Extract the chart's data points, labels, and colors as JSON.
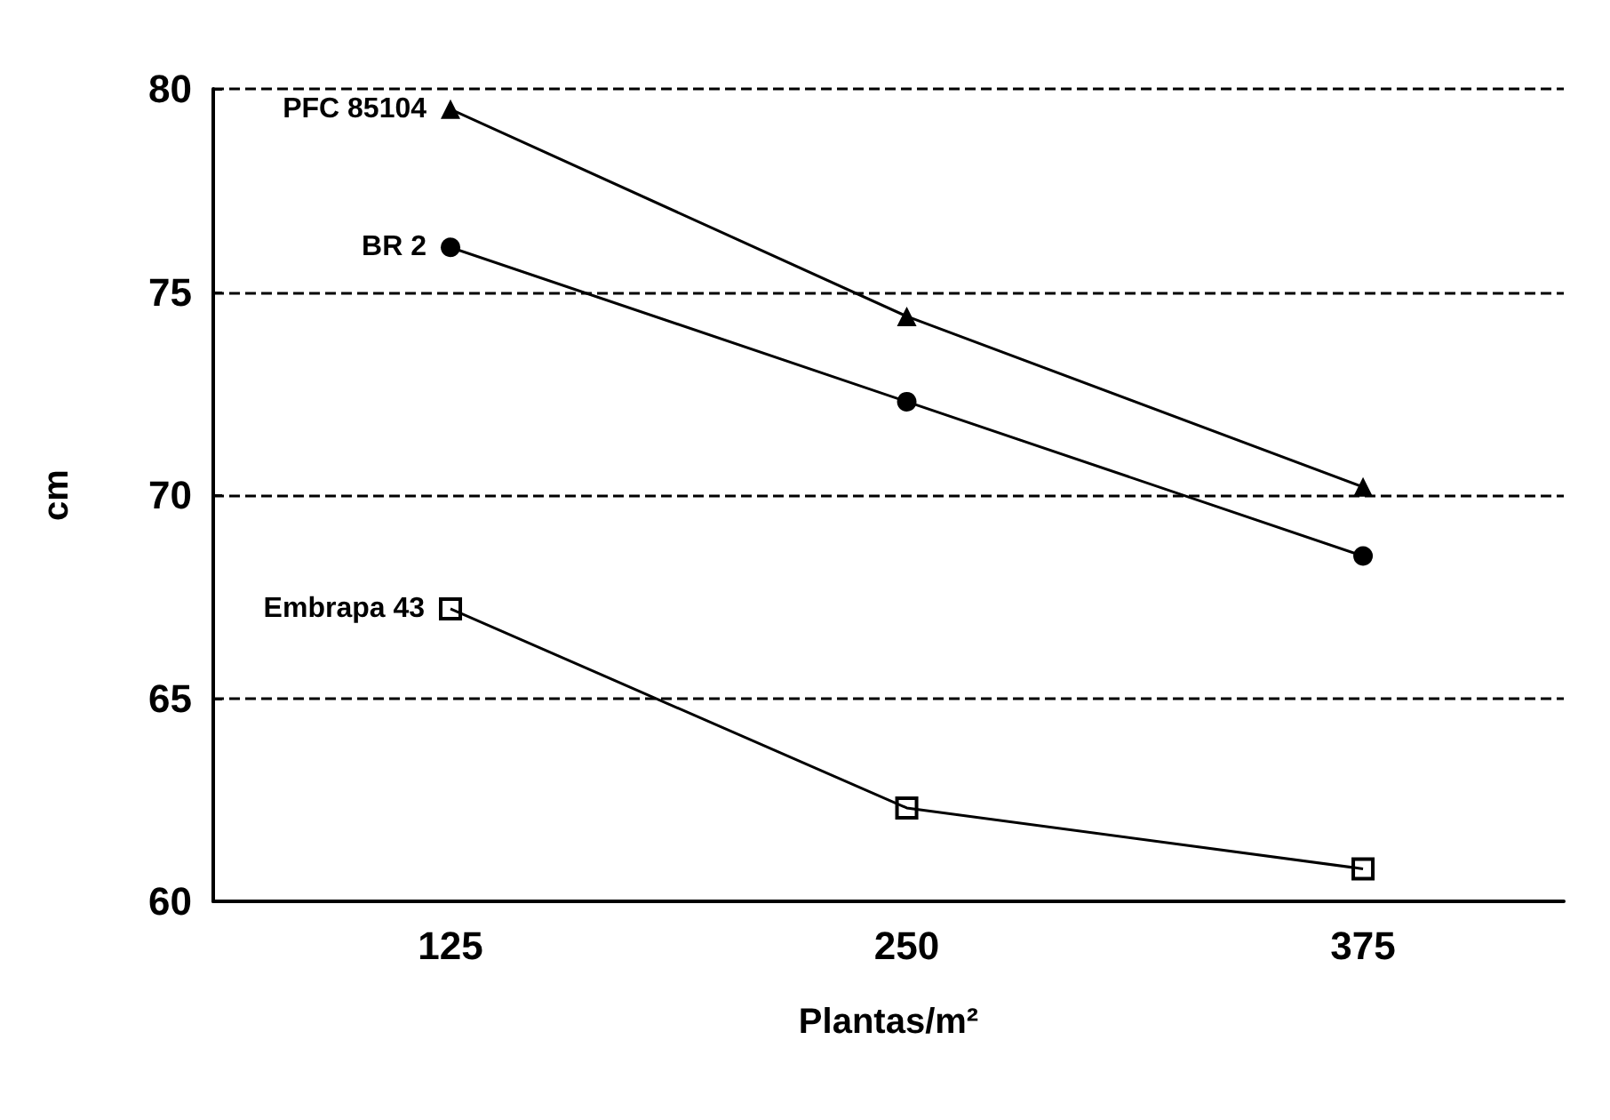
{
  "chart_data": {
    "type": "line",
    "xlabel": "Plantas/m²",
    "ylabel": "cm",
    "x": [
      125,
      250,
      375
    ],
    "xlim": [
      60,
      430
    ],
    "xticks": [
      125,
      250,
      375
    ],
    "ylim": [
      60,
      80
    ],
    "yticks": [
      60,
      65,
      70,
      75,
      80
    ],
    "grid": "y",
    "legend": false,
    "line_style": "solid",
    "series": [
      {
        "name": "PFC 85104",
        "color": "#000000",
        "marker": "triangle",
        "values": [
          79.5,
          74.4,
          70.2
        ]
      },
      {
        "name": "BR 2",
        "color": "#000000",
        "marker": "circle",
        "values": [
          76.1,
          72.3,
          68.5
        ]
      },
      {
        "name": "Embrapa 43",
        "color": "#000000",
        "marker": "square",
        "values": [
          67.2,
          62.3,
          60.8
        ]
      }
    ]
  }
}
